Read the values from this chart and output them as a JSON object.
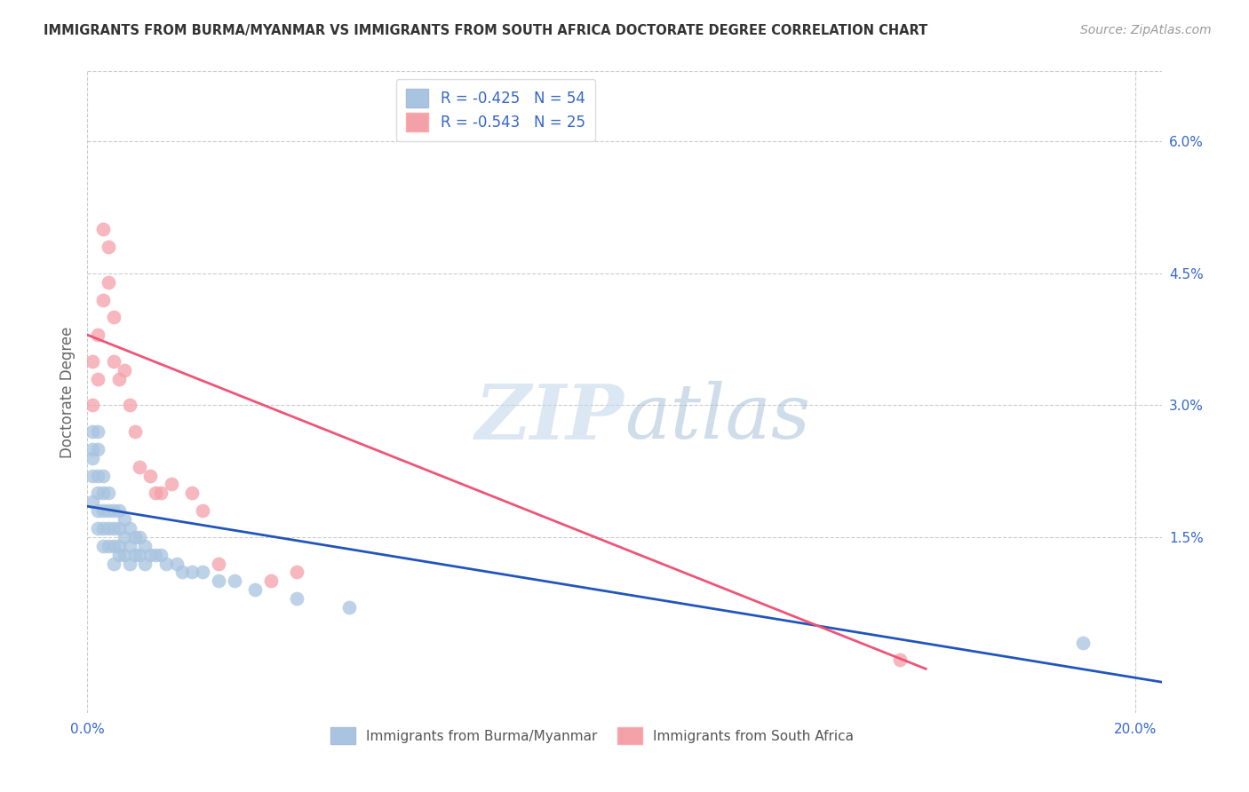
{
  "title": "IMMIGRANTS FROM BURMA/MYANMAR VS IMMIGRANTS FROM SOUTH AFRICA DOCTORATE DEGREE CORRELATION CHART",
  "source": "Source: ZipAtlas.com",
  "ylabel": "Doctorate Degree",
  "right_ytick_labels": [
    "6.0%",
    "4.5%",
    "3.0%",
    "1.5%"
  ],
  "right_ytick_values": [
    0.06,
    0.045,
    0.03,
    0.015
  ],
  "xlim": [
    0.0,
    0.205
  ],
  "ylim": [
    -0.005,
    0.068
  ],
  "legend_label1": "R = -0.425   N = 54",
  "legend_label2": "R = -0.543   N = 25",
  "legend_bottom_label1": "Immigrants from Burma/Myanmar",
  "legend_bottom_label2": "Immigrants from South Africa",
  "blue_color": "#A8C4E0",
  "pink_color": "#F4A0A8",
  "blue_line_color": "#2255BB",
  "pink_line_color": "#EE5577",
  "blue_scatter_x": [
    0.001,
    0.001,
    0.001,
    0.001,
    0.001,
    0.002,
    0.002,
    0.002,
    0.002,
    0.002,
    0.002,
    0.003,
    0.003,
    0.003,
    0.003,
    0.003,
    0.004,
    0.004,
    0.004,
    0.004,
    0.005,
    0.005,
    0.005,
    0.005,
    0.006,
    0.006,
    0.006,
    0.006,
    0.007,
    0.007,
    0.007,
    0.008,
    0.008,
    0.008,
    0.009,
    0.009,
    0.01,
    0.01,
    0.011,
    0.011,
    0.012,
    0.013,
    0.014,
    0.015,
    0.017,
    0.018,
    0.02,
    0.022,
    0.025,
    0.028,
    0.032,
    0.04,
    0.05,
    0.19
  ],
  "blue_scatter_y": [
    0.027,
    0.025,
    0.024,
    0.022,
    0.019,
    0.027,
    0.025,
    0.022,
    0.02,
    0.018,
    0.016,
    0.022,
    0.02,
    0.018,
    0.016,
    0.014,
    0.02,
    0.018,
    0.016,
    0.014,
    0.018,
    0.016,
    0.014,
    0.012,
    0.018,
    0.016,
    0.014,
    0.013,
    0.017,
    0.015,
    0.013,
    0.016,
    0.014,
    0.012,
    0.015,
    0.013,
    0.015,
    0.013,
    0.014,
    0.012,
    0.013,
    0.013,
    0.013,
    0.012,
    0.012,
    0.011,
    0.011,
    0.011,
    0.01,
    0.01,
    0.009,
    0.008,
    0.007,
    0.003
  ],
  "pink_scatter_x": [
    0.001,
    0.001,
    0.002,
    0.002,
    0.003,
    0.003,
    0.004,
    0.004,
    0.005,
    0.005,
    0.006,
    0.007,
    0.008,
    0.009,
    0.01,
    0.012,
    0.013,
    0.014,
    0.016,
    0.02,
    0.022,
    0.025,
    0.035,
    0.04,
    0.155
  ],
  "pink_scatter_y": [
    0.035,
    0.03,
    0.038,
    0.033,
    0.05,
    0.042,
    0.048,
    0.044,
    0.04,
    0.035,
    0.033,
    0.034,
    0.03,
    0.027,
    0.023,
    0.022,
    0.02,
    0.02,
    0.021,
    0.02,
    0.018,
    0.012,
    0.01,
    0.011,
    0.001
  ],
  "blue_line_x": [
    0.0,
    0.205
  ],
  "blue_line_y": [
    0.0185,
    -0.0015
  ],
  "pink_line_x": [
    0.0,
    0.16
  ],
  "pink_line_y": [
    0.038,
    0.0
  ],
  "watermark_zip": "ZIP",
  "watermark_atlas": "atlas",
  "background_color": "#FFFFFF",
  "grid_color": "#CCCCCC",
  "title_color": "#333333",
  "source_color": "#999999",
  "tick_color": "#3366CC",
  "ylabel_color": "#666666"
}
